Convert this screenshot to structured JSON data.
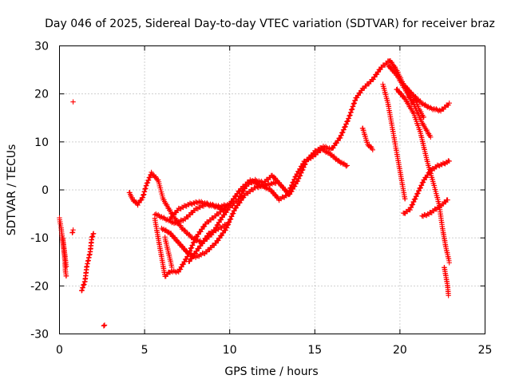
{
  "chart_data": {
    "type": "scatter",
    "title": "Day 046 of 2025, Sidereal Day-to-day VTEC variation (SDTVAR) for receiver braz",
    "xlabel": "GPS time / hours",
    "ylabel": "SDTVAR / TECUs",
    "xlim": [
      0,
      25
    ],
    "ylim": [
      -30,
      30
    ],
    "xticks": [
      "0",
      "5",
      "10",
      "15",
      "20",
      "25"
    ],
    "yticks": [
      "-30",
      "-20",
      "-10",
      "0",
      "10",
      "20",
      "30"
    ],
    "grid": true,
    "marker": "+",
    "color": "#ff0000",
    "series": [
      {
        "name": "trace-a",
        "points": [
          [
            0.0,
            -6
          ],
          [
            0.1,
            -8
          ],
          [
            0.2,
            -11
          ],
          [
            0.3,
            -14
          ],
          [
            0.35,
            -17
          ],
          [
            0.4,
            -18
          ]
        ]
      },
      {
        "name": "trace-b",
        "points": [
          [
            0.2,
            -10
          ],
          [
            0.3,
            -13
          ],
          [
            0.4,
            -16
          ]
        ]
      },
      {
        "name": "trace-c",
        "points": [
          [
            0.75,
            -9
          ],
          [
            0.8,
            -8.5
          ]
        ]
      },
      {
        "name": "trace-d",
        "points": [
          [
            0.8,
            18.5
          ]
        ]
      },
      {
        "name": "trace-e",
        "points": [
          [
            1.3,
            -21
          ],
          [
            1.5,
            -19
          ],
          [
            1.6,
            -16
          ],
          [
            1.8,
            -13
          ],
          [
            1.9,
            -10
          ],
          [
            2.0,
            -9
          ]
        ]
      },
      {
        "name": "trace-f",
        "points": [
          [
            2.6,
            -28.5
          ],
          [
            2.65,
            -28
          ]
        ]
      },
      {
        "name": "trace-g",
        "points": [
          [
            4.1,
            -0.5
          ],
          [
            4.3,
            -2
          ],
          [
            4.6,
            -3
          ],
          [
            4.9,
            -1.5
          ],
          [
            5.1,
            1
          ],
          [
            5.4,
            3.5
          ],
          [
            5.8,
            2
          ],
          [
            6.1,
            -2
          ],
          [
            6.6,
            -5
          ],
          [
            7.2,
            -8
          ],
          [
            7.8,
            -10
          ],
          [
            8.4,
            -11
          ],
          [
            9.0,
            -9
          ],
          [
            9.5,
            -6
          ],
          [
            9.9,
            -4
          ],
          [
            10.5,
            -2
          ],
          [
            11.0,
            1
          ],
          [
            11.5,
            2
          ],
          [
            12.0,
            1.5
          ],
          [
            12.5,
            3
          ],
          [
            13.0,
            1
          ],
          [
            13.5,
            -1
          ],
          [
            14.0,
            2
          ],
          [
            14.5,
            6
          ],
          [
            15.0,
            8
          ],
          [
            15.5,
            9
          ],
          [
            16.0,
            8.5
          ],
          [
            16.5,
            11
          ],
          [
            17.0,
            15
          ],
          [
            17.4,
            19
          ],
          [
            17.8,
            21
          ],
          [
            18.4,
            23
          ],
          [
            18.9,
            25.5
          ],
          [
            19.4,
            27
          ],
          [
            19.8,
            25
          ],
          [
            20.2,
            22
          ],
          [
            20.7,
            20
          ],
          [
            21.3,
            18
          ],
          [
            21.8,
            17
          ],
          [
            22.4,
            16.5
          ],
          [
            22.9,
            18
          ]
        ]
      },
      {
        "name": "trace-h",
        "points": [
          [
            5.6,
            -6
          ],
          [
            5.8,
            -10
          ],
          [
            6.0,
            -14
          ],
          [
            6.2,
            -18
          ],
          [
            6.5,
            -17
          ],
          [
            7.0,
            -17
          ],
          [
            7.5,
            -14
          ],
          [
            8.0,
            -10
          ],
          [
            8.6,
            -7
          ],
          [
            9.3,
            -5
          ],
          [
            10.0,
            -3
          ],
          [
            10.6,
            0
          ],
          [
            11.2,
            2
          ],
          [
            11.8,
            1
          ],
          [
            12.4,
            0
          ],
          [
            12.9,
            -2
          ],
          [
            13.4,
            -1
          ],
          [
            13.9,
            3
          ],
          [
            14.4,
            6
          ],
          [
            14.9,
            7
          ],
          [
            15.4,
            8.5
          ],
          [
            15.9,
            7.5
          ],
          [
            16.4,
            6
          ],
          [
            16.9,
            5
          ]
        ]
      },
      {
        "name": "trace-i",
        "points": [
          [
            5.6,
            -5
          ],
          [
            6.2,
            -6
          ],
          [
            6.8,
            -7
          ],
          [
            7.4,
            -6
          ],
          [
            8.0,
            -4
          ],
          [
            8.6,
            -3
          ],
          [
            9.2,
            -3.5
          ],
          [
            9.8,
            -4.5
          ]
        ]
      },
      {
        "name": "trace-j",
        "points": [
          [
            6.0,
            -8
          ],
          [
            6.5,
            -9
          ],
          [
            7.0,
            -11
          ],
          [
            7.5,
            -13
          ],
          [
            8.0,
            -14
          ],
          [
            8.6,
            -13
          ],
          [
            9.2,
            -11
          ],
          [
            9.8,
            -8
          ],
          [
            10.3,
            -4
          ],
          [
            10.9,
            -1
          ],
          [
            11.5,
            0.5
          ],
          [
            12.1,
            1
          ],
          [
            12.7,
            1.5
          ]
        ]
      },
      {
        "name": "trace-k",
        "points": [
          [
            6.2,
            -10
          ],
          [
            6.4,
            -13
          ],
          [
            6.6,
            -16
          ]
        ]
      },
      {
        "name": "trace-l",
        "points": [
          [
            6.5,
            -6
          ],
          [
            7.0,
            -4
          ],
          [
            7.6,
            -3
          ],
          [
            8.2,
            -2.5
          ],
          [
            8.8,
            -3
          ],
          [
            9.4,
            -3.5
          ],
          [
            10.0,
            -3
          ]
        ]
      },
      {
        "name": "trace-m",
        "points": [
          [
            7.6,
            -15
          ],
          [
            8.2,
            -12
          ],
          [
            8.8,
            -9
          ],
          [
            9.4,
            -8
          ],
          [
            9.9,
            -7
          ]
        ]
      },
      {
        "name": "trace-n",
        "points": [
          [
            17.8,
            13
          ],
          [
            18.1,
            9.5
          ],
          [
            18.4,
            8.5
          ]
        ]
      },
      {
        "name": "trace-o",
        "points": [
          [
            19.0,
            22
          ],
          [
            19.3,
            18
          ],
          [
            19.6,
            12
          ],
          [
            19.9,
            6
          ],
          [
            20.1,
            2
          ],
          [
            20.3,
            -2
          ]
        ]
      },
      {
        "name": "trace-p",
        "points": [
          [
            20.2,
            -5
          ],
          [
            20.6,
            -4
          ],
          [
            21.0,
            -1
          ],
          [
            21.4,
            2
          ],
          [
            21.8,
            4
          ],
          [
            22.2,
            5
          ],
          [
            22.6,
            5.5
          ],
          [
            22.9,
            6
          ]
        ]
      },
      {
        "name": "trace-q",
        "points": [
          [
            19.8,
            21
          ],
          [
            20.3,
            19
          ],
          [
            20.8,
            16
          ],
          [
            21.2,
            12
          ],
          [
            21.6,
            6
          ],
          [
            22.0,
            1
          ],
          [
            22.3,
            -3
          ],
          [
            22.5,
            -8
          ],
          [
            22.7,
            -12
          ],
          [
            22.9,
            -15
          ]
        ]
      },
      {
        "name": "trace-r",
        "points": [
          [
            21.3,
            -5.5
          ],
          [
            21.7,
            -5
          ],
          [
            22.1,
            -4
          ],
          [
            22.5,
            -3
          ],
          [
            22.8,
            -2
          ]
        ]
      },
      {
        "name": "trace-s",
        "points": [
          [
            22.6,
            -16
          ],
          [
            22.7,
            -18
          ],
          [
            22.8,
            -20
          ],
          [
            22.85,
            -22
          ]
        ]
      },
      {
        "name": "trace-t",
        "points": [
          [
            19.3,
            26
          ],
          [
            19.8,
            24
          ],
          [
            20.3,
            21
          ],
          [
            20.8,
            18
          ],
          [
            21.3,
            14
          ],
          [
            21.8,
            11
          ]
        ]
      },
      {
        "name": "trace-u",
        "points": [
          [
            20.5,
            20
          ],
          [
            20.7,
            18
          ],
          [
            20.9,
            19
          ],
          [
            21.1,
            17
          ],
          [
            21.4,
            15
          ]
        ]
      }
    ]
  }
}
